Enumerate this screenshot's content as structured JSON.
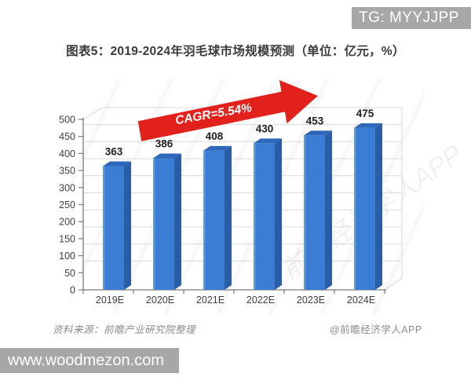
{
  "banner_top": {
    "text": "TG: MYYJJPP"
  },
  "header": {
    "title": "图表5：2019-2024年羽毛球市场规模预测（单位：亿元，%）"
  },
  "footer": {
    "source": "资料来源：前瞻产业研究院整理",
    "credit": "@前瞻经济学人APP"
  },
  "watermark": {
    "text": "www.woodmezon.com"
  },
  "chart_data": {
    "type": "bar",
    "style": "3d-column",
    "title": "图表5：2019-2024年羽毛球市场规模预测（单位：亿元，%）",
    "categories": [
      "2019E",
      "2020E",
      "2021E",
      "2022E",
      "2023E",
      "2024E"
    ],
    "values": [
      363,
      386,
      408,
      430,
      453,
      475
    ],
    "xlabel": "",
    "ylabel": "",
    "ylim": [
      0,
      500
    ],
    "ytick_step": 50,
    "yticks": [
      0,
      50,
      100,
      150,
      200,
      250,
      300,
      350,
      400,
      450,
      500
    ],
    "grid": true,
    "legend": "none",
    "annotation": {
      "label": "CAGR=5.54%",
      "type": "trend-arrow"
    }
  },
  "colors": {
    "bar_front": "#3b7cd4",
    "bar_side": "#2a5da8",
    "bar_top": "#2f68ba",
    "bar_highlight": "#6b9fe0",
    "arrow": "#e2211c",
    "arrow_text": "#ffffff",
    "banner_bg": "#a7a7a7",
    "banner_text": "#ffffff",
    "grid": "#d9d9d9",
    "axis": "#7a7a7a",
    "tick_text": "#3f3f3f",
    "value_text": "#1f1f1f",
    "title_text": "#3b3b3b",
    "footer_text": "#8c8c8c"
  }
}
